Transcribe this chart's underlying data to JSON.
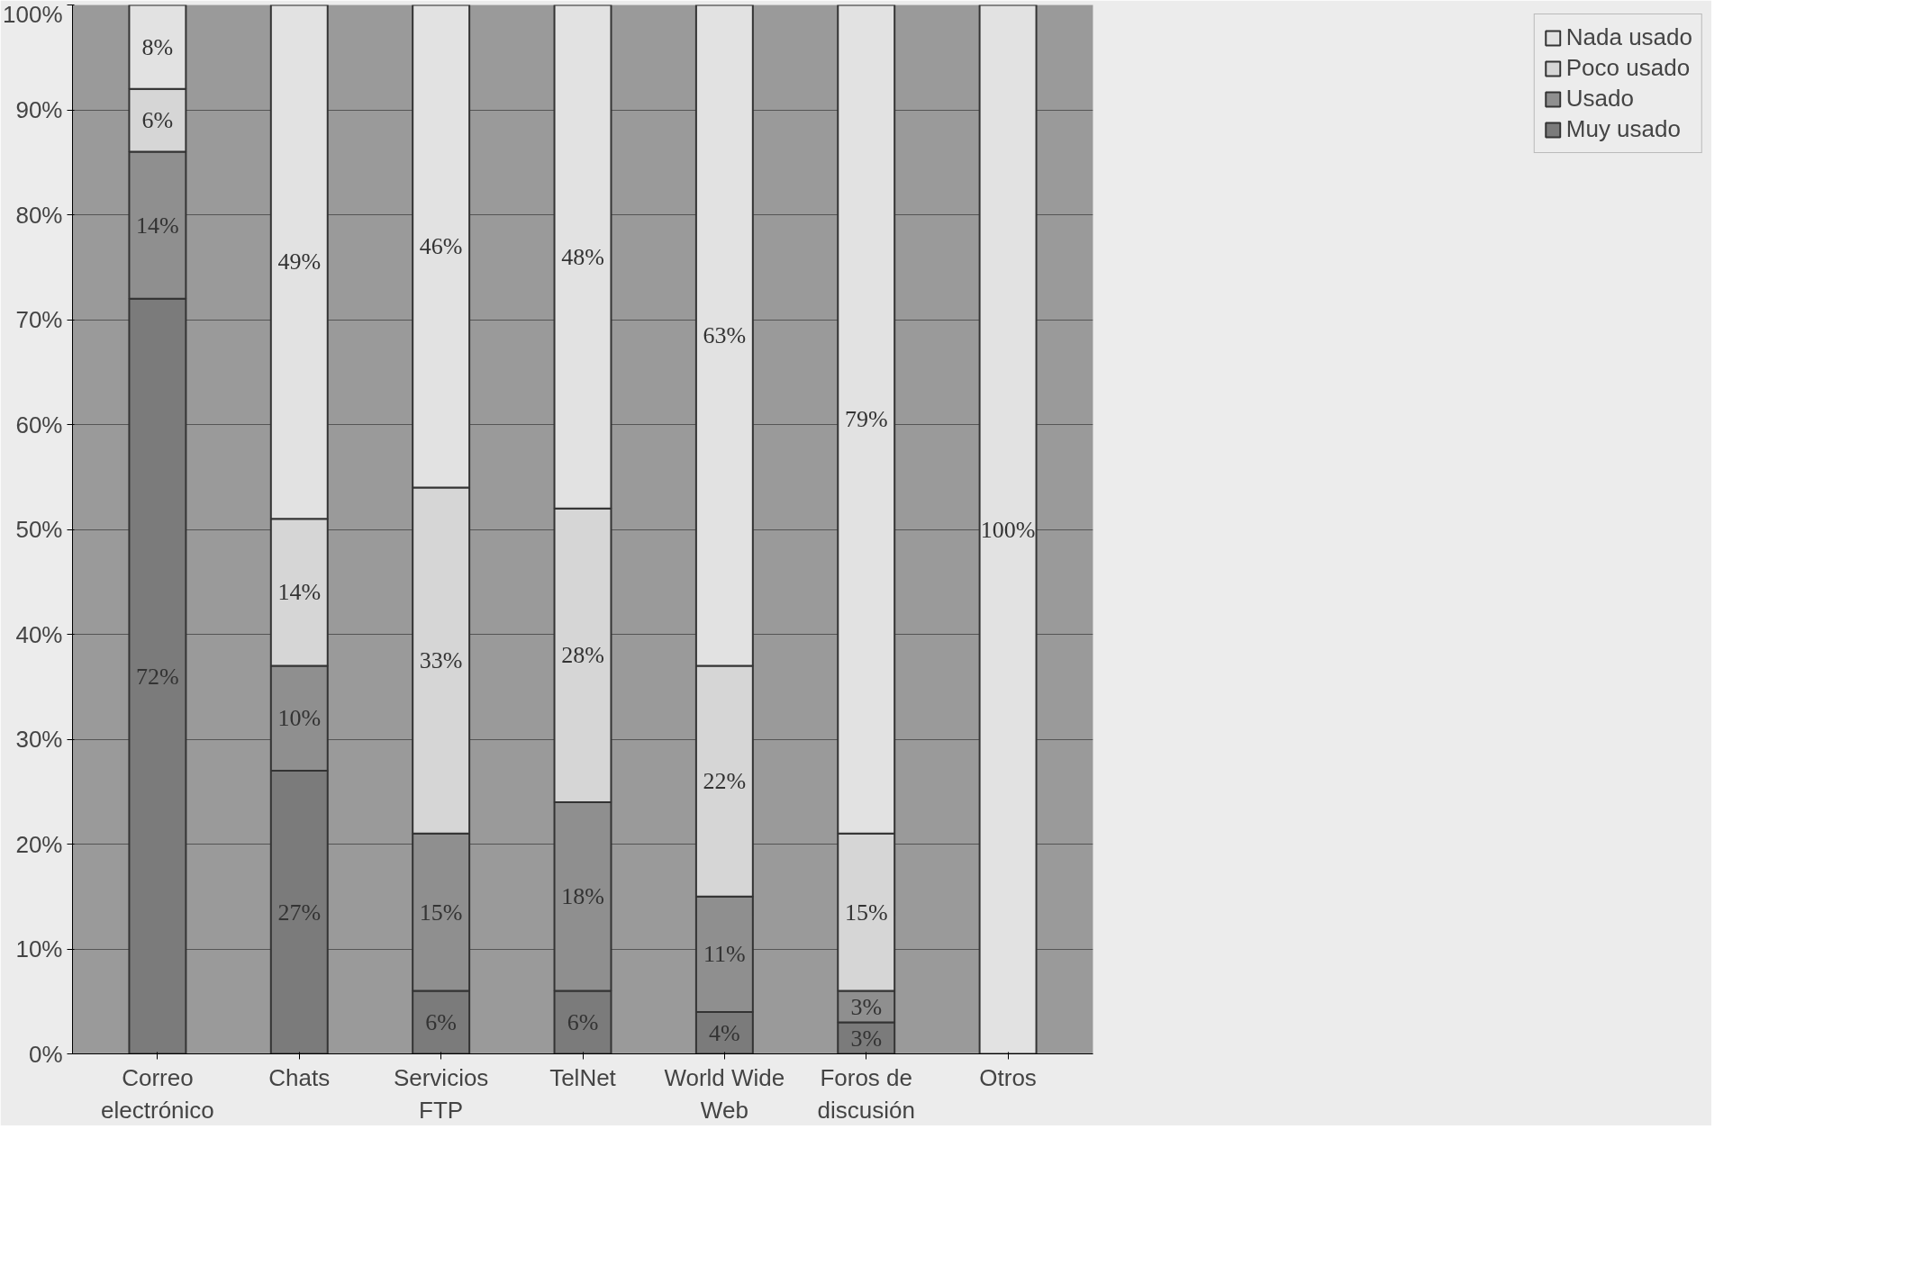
{
  "chart_data": {
    "type": "bar",
    "stacked": true,
    "categories": [
      "Correo electrónico",
      "Chats",
      "Servicios FTP",
      "TelNet",
      "World Wide Web",
      "Foros de discusión",
      "Otros"
    ],
    "series": [
      {
        "name": "Muy usado",
        "color": "#7b7b7b",
        "values": [
          72,
          27,
          6,
          6,
          4,
          3,
          null
        ],
        "value_labels": [
          "72%",
          "27%",
          "6%",
          "6%",
          "4%",
          "3%",
          null
        ]
      },
      {
        "name": "Usado",
        "color": "#8f8f8f",
        "values": [
          14,
          10,
          15,
          18,
          11,
          3,
          null
        ],
        "value_labels": [
          "14%",
          "10%",
          "15%",
          "18%",
          "11%",
          "3%",
          null
        ]
      },
      {
        "name": "Poco usado",
        "color": "#d6d6d6",
        "values": [
          6,
          14,
          33,
          28,
          22,
          15,
          null
        ],
        "value_labels": [
          "6%",
          "14%",
          "33%",
          "28%",
          "22%",
          "15%",
          null
        ]
      },
      {
        "name": "Nada usado",
        "color": "#e2e2e2",
        "values": [
          8,
          49,
          46,
          48,
          63,
          79,
          100
        ],
        "value_labels": [
          "8%",
          "49%",
          "46%",
          "48%",
          "63%",
          "79%",
          "100%"
        ]
      }
    ],
    "ylim": [
      0,
      100
    ],
    "yticks": [
      {
        "value": 0,
        "label": "0%"
      },
      {
        "value": 10,
        "label": "10%"
      },
      {
        "value": 20,
        "label": "20%"
      },
      {
        "value": 30,
        "label": "30%"
      },
      {
        "value": 40,
        "label": "40%"
      },
      {
        "value": 50,
        "label": "50%"
      },
      {
        "value": 60,
        "label": "60%"
      },
      {
        "value": 70,
        "label": "70%"
      },
      {
        "value": 80,
        "label": "80%"
      },
      {
        "value": 90,
        "label": "90%"
      },
      {
        "value": 100,
        "label": "100%"
      }
    ],
    "grid": "y",
    "legend": "right"
  }
}
